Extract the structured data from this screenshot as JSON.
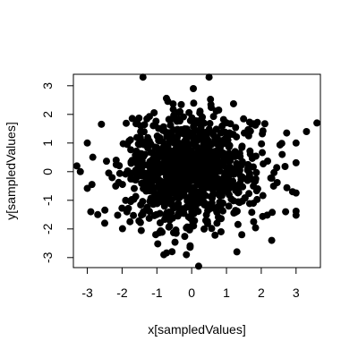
{
  "chart_data": {
    "type": "scatter",
    "title": "",
    "xlabel": "x[sampledValues]",
    "ylabel": "y[sampledValues]",
    "xlim": [
      -3.4,
      3.7
    ],
    "ylim": [
      -3.35,
      3.4
    ],
    "xticks": [
      -3,
      -2,
      -1,
      0,
      1,
      2,
      3
    ],
    "yticks": [
      -3,
      -2,
      -1,
      0,
      1,
      2,
      3
    ],
    "grid": false,
    "legend": "none",
    "marker_color": "#000000",
    "generated_points": {
      "n": 1000,
      "seed": 7,
      "distribution": "standard-normal"
    },
    "points": [
      {
        "x": -1.4,
        "y": 3.3
      },
      {
        "x": 0.5,
        "y": 3.3
      },
      {
        "x": 3.6,
        "y": 1.7
      },
      {
        "x": 3.3,
        "y": 1.4
      },
      {
        "x": 3.0,
        "y": 1.0
      },
      {
        "x": -3.3,
        "y": 0.2
      },
      {
        "x": -3.0,
        "y": 1.0
      },
      {
        "x": -3.2,
        "y": 0.0
      },
      {
        "x": -2.9,
        "y": -1.4
      },
      {
        "x": -2.7,
        "y": -1.5
      },
      {
        "x": 0.2,
        "y": -3.3
      },
      {
        "x": -0.8,
        "y": -2.9
      },
      {
        "x": 1.3,
        "y": -2.8
      },
      {
        "x": 2.7,
        "y": -1.4
      },
      {
        "x": 2.6,
        "y": 0.6
      },
      {
        "x": 2.3,
        "y": -2.4
      },
      {
        "x": -2.5,
        "y": -1.8
      },
      {
        "x": 2.9,
        "y": -0.7
      }
    ]
  }
}
